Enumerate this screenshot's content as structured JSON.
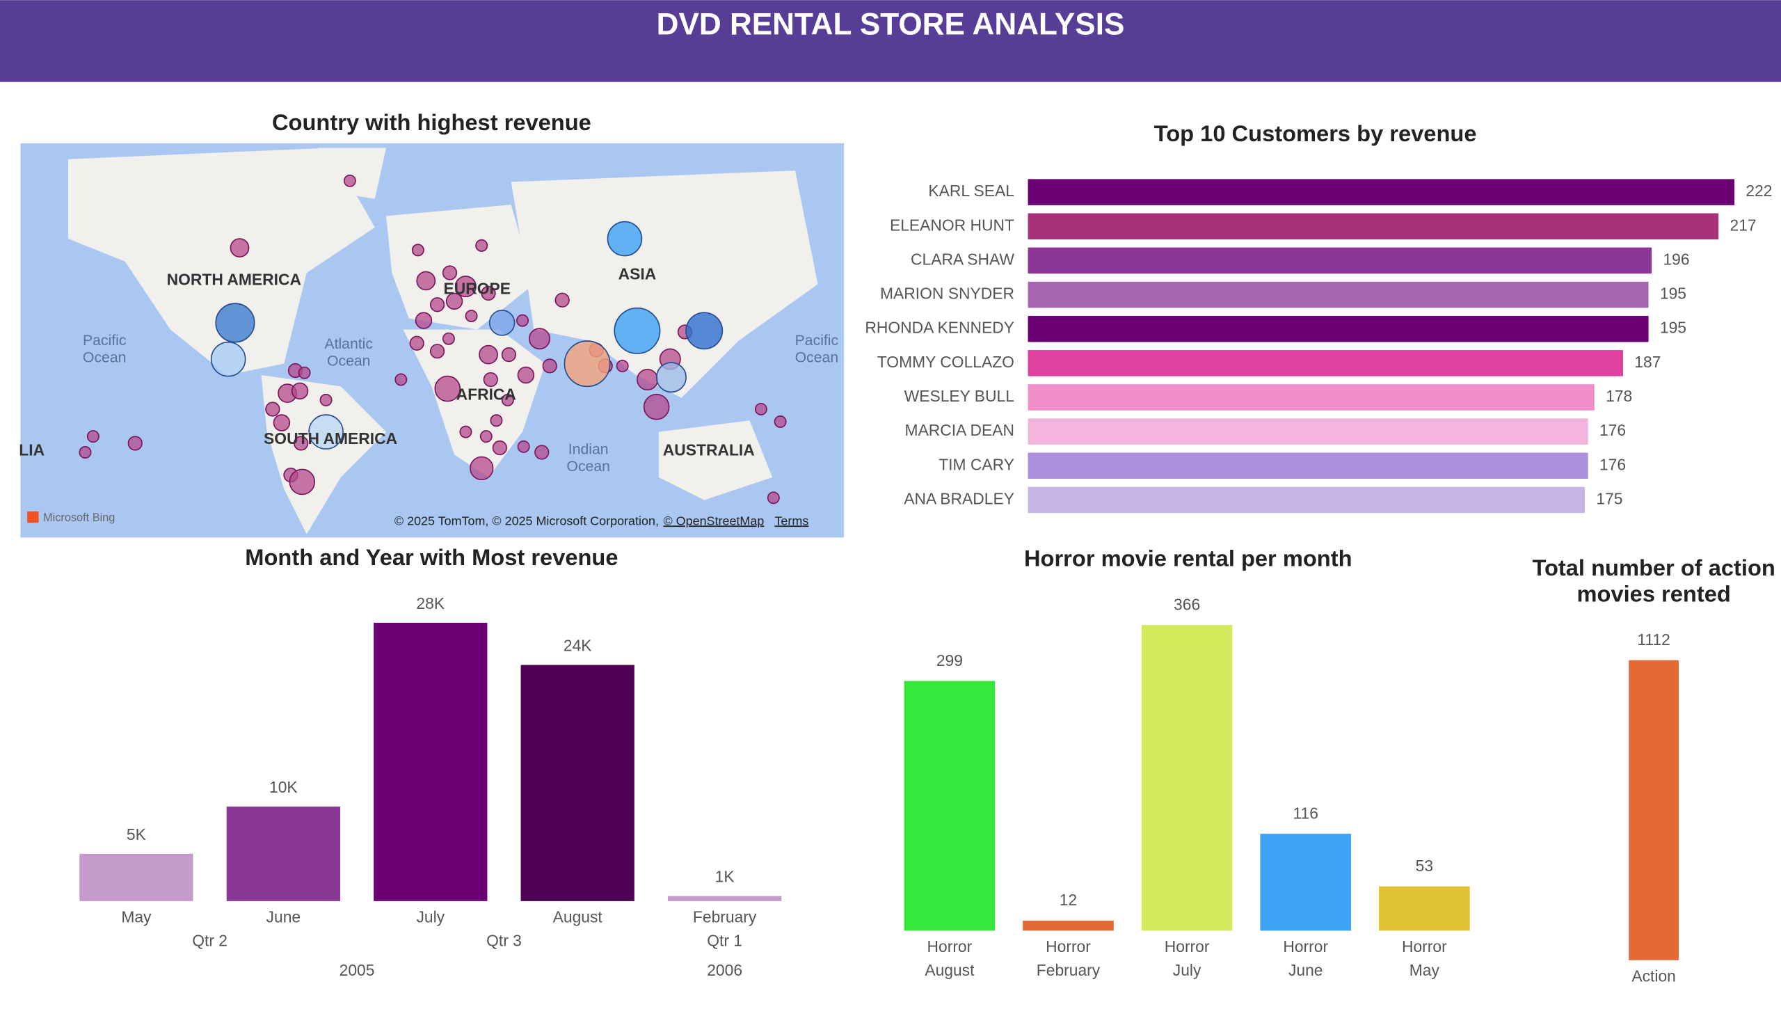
{
  "header": {
    "title": "DVD RENTAL STORE ANALYSIS"
  },
  "chart_data": [
    {
      "type": "map",
      "title": "Country with highest revenue",
      "labels": [
        "NORTH AMERICA",
        "ASIA",
        "Pacific Ocean",
        "Atlantic Ocean",
        "Pacific Ocean",
        "EUROPE",
        "AFRICA",
        "SOUTH AMERICA",
        "Indian Ocean",
        "AUSTRALIA",
        "LIA"
      ],
      "brand": "Microsoft Bing",
      "attribution": "© 2025 TomTom, © 2025 Microsoft Corporation,",
      "osm": "© OpenStreetMap",
      "terms": "Terms"
    },
    {
      "type": "hbar",
      "title": "Top 10 Customers by revenue",
      "categories": [
        "KARL SEAL",
        "ELEANOR HUNT",
        "CLARA SHAW",
        "MARION SNYDER",
        "RHONDA KENNEDY",
        "TOMMY COLLAZO",
        "WESLEY BULL",
        "MARCIA DEAN",
        "TIM CARY",
        "ANA BRADLEY"
      ],
      "values": [
        222,
        217,
        196,
        195,
        195,
        187,
        178,
        176,
        176,
        175
      ],
      "colors": [
        "#6a0073",
        "#a8327a",
        "#8b3594",
        "#a765b2",
        "#6a0073",
        "#e040a0",
        "#ef8ec8",
        "#f2b3dc",
        "#ad8fdc",
        "#c8b4e6"
      ]
    },
    {
      "type": "bar",
      "title": "Month and Year with Most revenue",
      "years": [
        {
          "label": "2005",
          "quarters": [
            {
              "label": "Qtr 2",
              "months": [
                "May",
                "June"
              ]
            },
            {
              "label": "Qtr 3",
              "months": [
                "July",
                "August"
              ]
            }
          ]
        },
        {
          "label": "2006",
          "quarters": [
            {
              "label": "Qtr 1",
              "months": [
                "February"
              ]
            }
          ]
        }
      ],
      "values": [
        4824,
        9632,
        28374,
        24072,
        514
      ],
      "value_labels": [
        "5K",
        "10K",
        "28K",
        "24K",
        "1K"
      ],
      "colors": [
        "#c59bcb",
        "#8a3793",
        "#6a0073",
        "#4d0054",
        "#c59bcb"
      ]
    },
    {
      "type": "bar",
      "title": "Horror movie rental per month",
      "categories": [
        "Horror August",
        "Horror February",
        "Horror July",
        "Horror June",
        "Horror May"
      ],
      "values": [
        299,
        12,
        366,
        116,
        53
      ],
      "colors": [
        "#37e83c",
        "#e36a35",
        "#d2ea5c",
        "#3ea3f5",
        "#e0c234"
      ]
    },
    {
      "type": "bar",
      "title": "Total number of action movies rented",
      "categories": [
        "Action"
      ],
      "values": [
        1112
      ],
      "colors": [
        "#e36a35"
      ]
    }
  ]
}
